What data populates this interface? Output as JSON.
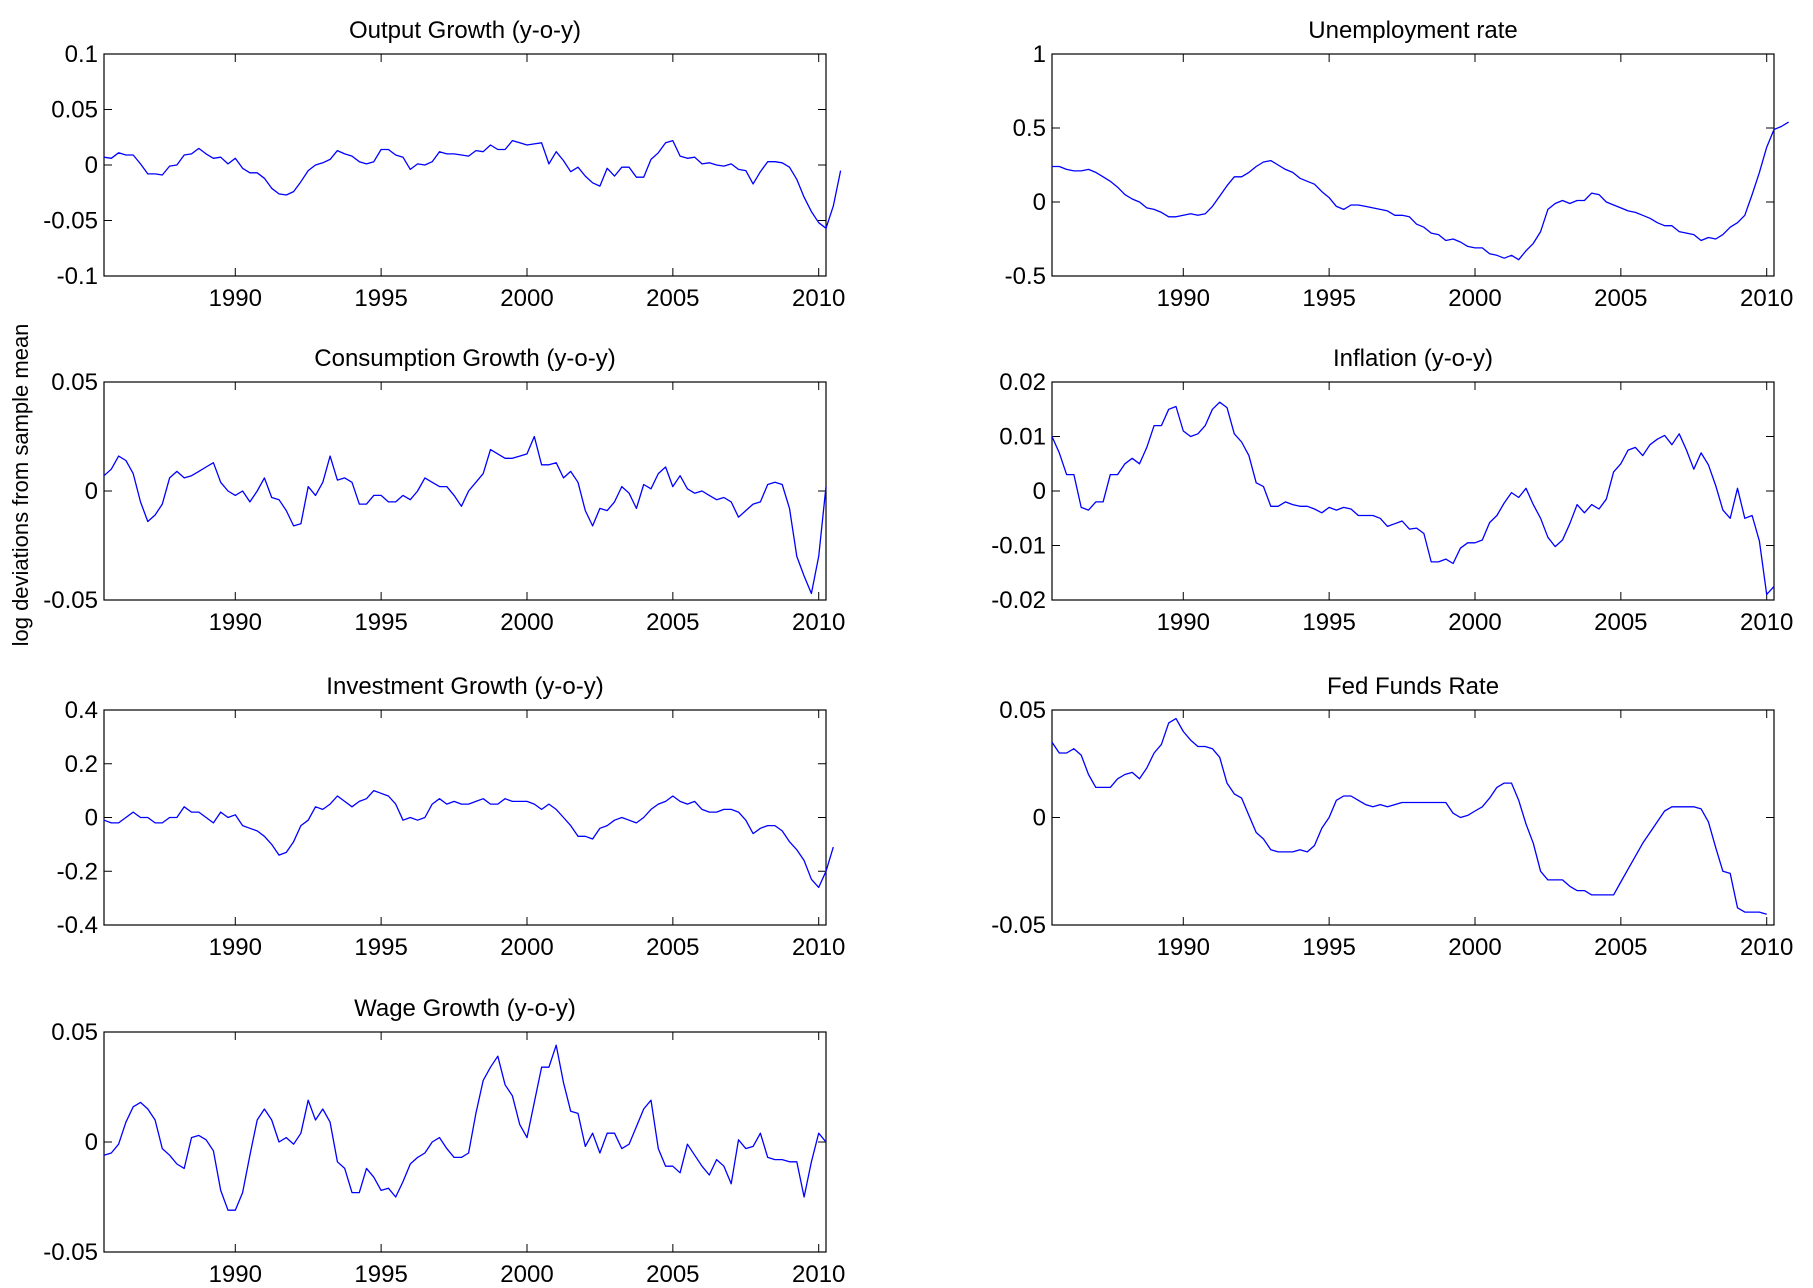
{
  "figure": {
    "ylabel": "log deviations from sample mean",
    "line_color": "#0000ff",
    "axis_color": "#000000",
    "background": "#ffffff"
  },
  "chart_data": [
    {
      "type": "line",
      "title": "Output Growth (y-o-y)",
      "xlabel": "",
      "ylabel": "",
      "xlim": [
        1985.5,
        2010.25
      ],
      "ylim": [
        -0.1,
        0.1
      ],
      "xticks": [
        "1990",
        "1995",
        "2000",
        "2005",
        "2010"
      ],
      "yticks": [
        "-0.1",
        "-0.05",
        "0",
        "0.05",
        "0.1"
      ],
      "grid": false,
      "series": [
        {
          "x_start": 1985.5,
          "x_step": 0.25,
          "values": [
            0.007,
            0.006,
            0.011,
            0.009,
            0.009,
            0.001,
            -0.008,
            -0.008,
            -0.009,
            -0.001,
            0,
            0.009,
            0.01,
            0.015,
            0.01,
            0.006,
            0.007,
            0.001,
            0.006,
            -0.003,
            -0.007,
            -0.007,
            -0.012,
            -0.021,
            -0.026,
            -0.027,
            -0.024,
            -0.015,
            -0.005,
            0,
            0.002,
            0.005,
            0.013,
            0.01,
            0.008,
            0.003,
            0.001,
            0.003,
            0.014,
            0.014,
            0.009,
            0.007,
            -0.004,
            0.001,
            0,
            0.003,
            0.012,
            0.01,
            0.01,
            0.009,
            0.008,
            0.013,
            0.012,
            0.018,
            0.014,
            0.014,
            0.022,
            0.02,
            0.018,
            0.019,
            0.02,
            0.001,
            0.012,
            0.004,
            -0.006,
            -0.002,
            -0.01,
            -0.016,
            -0.019,
            -0.003,
            -0.01,
            -0.002,
            -0.002,
            -0.011,
            -0.011,
            0.005,
            0.011,
            0.02,
            0.022,
            0.008,
            0.006,
            0.007,
            0.001,
            0.002,
            0,
            -0.001,
            0.001,
            -0.004,
            -0.005,
            -0.017,
            -0.006,
            0.003,
            0.003,
            0.002,
            -0.002,
            -0.013,
            -0.029,
            -0.042,
            -0.052,
            -0.057,
            -0.037,
            -0.005
          ]
        }
      ]
    },
    {
      "type": "line",
      "title": "Unemployment rate",
      "xlabel": "",
      "ylabel": "",
      "xlim": [
        1985.5,
        2010.25
      ],
      "ylim": [
        -0.5,
        1
      ],
      "xticks": [
        "1990",
        "1995",
        "2000",
        "2005",
        "2010"
      ],
      "yticks": [
        "-0.5",
        "0",
        "0.5",
        "1"
      ],
      "grid": false,
      "series": [
        {
          "x_start": 1985.5,
          "x_step": 0.25,
          "values": [
            0.24,
            0.24,
            0.22,
            0.21,
            0.21,
            0.22,
            0.2,
            0.17,
            0.14,
            0.1,
            0.05,
            0.02,
            0.0,
            -0.04,
            -0.05,
            -0.07,
            -0.1,
            -0.1,
            -0.09,
            -0.08,
            -0.09,
            -0.08,
            -0.03,
            0.04,
            0.11,
            0.17,
            0.17,
            0.2,
            0.24,
            0.27,
            0.28,
            0.25,
            0.22,
            0.2,
            0.16,
            0.14,
            0.12,
            0.07,
            0.03,
            -0.03,
            -0.05,
            -0.02,
            -0.02,
            -0.03,
            -0.04,
            -0.05,
            -0.06,
            -0.09,
            -0.09,
            -0.1,
            -0.15,
            -0.17,
            -0.21,
            -0.22,
            -0.26,
            -0.25,
            -0.27,
            -0.3,
            -0.31,
            -0.31,
            -0.35,
            -0.36,
            -0.38,
            -0.36,
            -0.39,
            -0.33,
            -0.28,
            -0.2,
            -0.05,
            -0.01,
            0.01,
            -0.01,
            0.01,
            0.01,
            0.06,
            0.05,
            0.0,
            -0.02,
            -0.04,
            -0.06,
            -0.07,
            -0.09,
            -0.11,
            -0.14,
            -0.16,
            -0.16,
            -0.2,
            -0.21,
            -0.22,
            -0.26,
            -0.24,
            -0.25,
            -0.22,
            -0.17,
            -0.14,
            -0.09,
            0.05,
            0.2,
            0.37,
            0.49,
            0.51,
            0.54
          ]
        }
      ]
    },
    {
      "type": "line",
      "title": "Consumption Growth (y-o-y)",
      "xlabel": "",
      "ylabel": "",
      "xlim": [
        1985.5,
        2010.25
      ],
      "ylim": [
        -0.05,
        0.05
      ],
      "xticks": [
        "1990",
        "1995",
        "2000",
        "2005",
        "2010"
      ],
      "yticks": [
        "-0.05",
        "0",
        "0.05"
      ],
      "grid": false,
      "series": [
        {
          "x_start": 1985.5,
          "x_step": 0.25,
          "values": [
            0.007,
            0.01,
            0.016,
            0.014,
            0.008,
            -0.005,
            -0.014,
            -0.011,
            -0.006,
            0.006,
            0.009,
            0.006,
            0.007,
            0.009,
            0.011,
            0.013,
            0.004,
            0.0,
            -0.002,
            0.0,
            -0.005,
            0.0,
            0.006,
            -0.003,
            -0.004,
            -0.009,
            -0.016,
            -0.015,
            0.002,
            -0.002,
            0.004,
            0.016,
            0.005,
            0.006,
            0.004,
            -0.006,
            -0.006,
            -0.002,
            -0.002,
            -0.005,
            -0.005,
            -0.002,
            -0.004,
            0.0,
            0.006,
            0.004,
            0.002,
            0.002,
            -0.002,
            -0.007,
            0.0,
            0.004,
            0.008,
            0.019,
            0.017,
            0.015,
            0.015,
            0.016,
            0.017,
            0.025,
            0.012,
            0.012,
            0.013,
            0.006,
            0.009,
            0.004,
            -0.009,
            -0.016,
            -0.008,
            -0.009,
            -0.005,
            0.002,
            -0.001,
            -0.008,
            0.003,
            0.001,
            0.008,
            0.011,
            0.002,
            0.007,
            0.001,
            -0.001,
            0.0,
            -0.002,
            -0.004,
            -0.003,
            -0.005,
            -0.012,
            -0.009,
            -0.006,
            -0.005,
            0.003,
            0.004,
            0.003,
            -0.008,
            -0.03,
            -0.039,
            -0.047,
            -0.03,
            0.002
          ]
        }
      ]
    },
    {
      "type": "line",
      "title": "Inflation (y-o-y)",
      "xlabel": "",
      "ylabel": "",
      "xlim": [
        1985.5,
        2010.25
      ],
      "ylim": [
        -0.02,
        0.02
      ],
      "xticks": [
        "1990",
        "1995",
        "2000",
        "2005",
        "2010"
      ],
      "yticks": [
        "-0.02",
        "-0.01",
        "0",
        "0.01",
        "0.02"
      ],
      "grid": false,
      "series": [
        {
          "x_start": 1985.5,
          "x_step": 0.25,
          "values": [
            0.01,
            0.007,
            0.003,
            0.003,
            -0.003,
            -0.0035,
            -0.002,
            -0.002,
            0.003,
            0.003,
            0.005,
            0.006,
            0.005,
            0.008,
            0.012,
            0.012,
            0.015,
            0.0155,
            0.011,
            0.01,
            0.0105,
            0.012,
            0.015,
            0.0163,
            0.0153,
            0.0105,
            0.009,
            0.0065,
            0.0015,
            0.0008,
            -0.0028,
            -0.0028,
            -0.002,
            -0.0025,
            -0.0028,
            -0.0028,
            -0.0033,
            -0.004,
            -0.003,
            -0.0035,
            -0.003,
            -0.0033,
            -0.0045,
            -0.0045,
            -0.0045,
            -0.005,
            -0.0065,
            -0.006,
            -0.0055,
            -0.007,
            -0.0068,
            -0.0078,
            -0.013,
            -0.013,
            -0.0125,
            -0.0133,
            -0.0105,
            -0.0095,
            -0.0095,
            -0.009,
            -0.0058,
            -0.0045,
            -0.0022,
            -0.0003,
            -0.0012,
            0.0005,
            -0.0025,
            -0.005,
            -0.0085,
            -0.0102,
            -0.009,
            -0.006,
            -0.0025,
            -0.004,
            -0.0025,
            -0.0033,
            -0.0015,
            0.0035,
            0.005,
            0.0075,
            0.008,
            0.0065,
            0.0085,
            0.0095,
            0.0102,
            0.0085,
            0.0105,
            0.0075,
            0.004,
            0.007,
            0.0048,
            0.001,
            -0.0035,
            -0.005,
            0.0005,
            -0.005,
            -0.0045,
            -0.0092,
            -0.019,
            -0.0175
          ]
        }
      ]
    },
    {
      "type": "line",
      "title": "Investment Growth (y-o-y)",
      "xlabel": "",
      "ylabel": "",
      "xlim": [
        1985.5,
        2010.25
      ],
      "ylim": [
        -0.4,
        0.4
      ],
      "xticks": [
        "1990",
        "1995",
        "2000",
        "2005",
        "2010"
      ],
      "yticks": [
        "-0.4",
        "-0.2",
        "0",
        "0.2",
        "0.4"
      ],
      "grid": false,
      "series": [
        {
          "x_start": 1985.5,
          "x_step": 0.25,
          "values": [
            -0.01,
            -0.02,
            -0.02,
            0.0,
            0.02,
            0.0,
            0.0,
            -0.02,
            -0.02,
            0.0,
            0.0,
            0.04,
            0.02,
            0.02,
            0.0,
            -0.02,
            0.02,
            0.0,
            0.01,
            -0.03,
            -0.04,
            -0.05,
            -0.07,
            -0.1,
            -0.14,
            -0.13,
            -0.09,
            -0.03,
            -0.01,
            0.04,
            0.03,
            0.05,
            0.08,
            0.06,
            0.04,
            0.06,
            0.07,
            0.1,
            0.09,
            0.08,
            0.05,
            -0.01,
            0.0,
            -0.01,
            0.0,
            0.05,
            0.07,
            0.05,
            0.06,
            0.05,
            0.05,
            0.06,
            0.07,
            0.05,
            0.05,
            0.07,
            0.06,
            0.06,
            0.06,
            0.05,
            0.03,
            0.05,
            0.03,
            0.0,
            -0.03,
            -0.07,
            -0.07,
            -0.08,
            -0.04,
            -0.03,
            -0.01,
            0.0,
            -0.01,
            -0.02,
            0.0,
            0.03,
            0.05,
            0.06,
            0.08,
            0.06,
            0.05,
            0.06,
            0.03,
            0.02,
            0.02,
            0.03,
            0.03,
            0.02,
            -0.01,
            -0.06,
            -0.04,
            -0.03,
            -0.03,
            -0.05,
            -0.09,
            -0.12,
            -0.16,
            -0.23,
            -0.26,
            -0.2,
            -0.11
          ]
        }
      ]
    },
    {
      "type": "line",
      "title": "Fed Funds Rate",
      "xlabel": "",
      "ylabel": "",
      "xlim": [
        1985.5,
        2010.25
      ],
      "ylim": [
        -0.05,
        0.05
      ],
      "xticks": [
        "1990",
        "1995",
        "2000",
        "2005",
        "2010"
      ],
      "yticks": [
        "-0.05",
        "0",
        "0.05"
      ],
      "grid": false,
      "series": [
        {
          "x_start": 1985.5,
          "x_step": 0.25,
          "values": [
            0.035,
            0.03,
            0.03,
            0.032,
            0.029,
            0.02,
            0.014,
            0.014,
            0.014,
            0.018,
            0.02,
            0.021,
            0.018,
            0.023,
            0.03,
            0.034,
            0.044,
            0.046,
            0.04,
            0.036,
            0.033,
            0.033,
            0.032,
            0.028,
            0.016,
            0.011,
            0.009,
            0.001,
            -0.007,
            -0.01,
            -0.015,
            -0.016,
            -0.016,
            -0.016,
            -0.015,
            -0.016,
            -0.013,
            -0.005,
            0.0,
            0.008,
            0.01,
            0.01,
            0.008,
            0.006,
            0.005,
            0.006,
            0.005,
            0.006,
            0.007,
            0.007,
            0.007,
            0.007,
            0.007,
            0.007,
            0.007,
            0.002,
            0.0,
            0.001,
            0.003,
            0.005,
            0.009,
            0.014,
            0.016,
            0.016,
            0.008,
            -0.003,
            -0.012,
            -0.025,
            -0.029,
            -0.029,
            -0.029,
            -0.032,
            -0.034,
            -0.034,
            -0.036,
            -0.036,
            -0.036,
            -0.036,
            -0.03,
            -0.024,
            -0.018,
            -0.012,
            -0.007,
            -0.002,
            0.003,
            0.005,
            0.005,
            0.005,
            0.005,
            0.004,
            -0.002,
            -0.014,
            -0.025,
            -0.026,
            -0.042,
            -0.044,
            -0.044,
            -0.044,
            -0.045
          ]
        }
      ]
    },
    {
      "type": "line",
      "title": "Wage Growth (y-o-y)",
      "xlabel": "",
      "ylabel": "",
      "xlim": [
        1985.5,
        2010.25
      ],
      "ylim": [
        -0.05,
        0.05
      ],
      "xticks": [
        "1990",
        "1995",
        "2000",
        "2005",
        "2010"
      ],
      "yticks": [
        "-0.05",
        "0",
        "0.05"
      ],
      "grid": false,
      "series": [
        {
          "x_start": 1985.5,
          "x_step": 0.25,
          "values": [
            -0.006,
            -0.005,
            -0.001,
            0.009,
            0.016,
            0.018,
            0.015,
            0.01,
            -0.003,
            -0.006,
            -0.01,
            -0.012,
            0.002,
            0.003,
            0.001,
            -0.004,
            -0.022,
            -0.031,
            -0.031,
            -0.023,
            -0.006,
            0.01,
            0.015,
            0.01,
            0.0,
            0.002,
            -0.001,
            0.004,
            0.019,
            0.01,
            0.015,
            0.009,
            -0.009,
            -0.012,
            -0.023,
            -0.023,
            -0.012,
            -0.016,
            -0.022,
            -0.021,
            -0.025,
            -0.018,
            -0.01,
            -0.007,
            -0.005,
            0.0,
            0.002,
            -0.003,
            -0.007,
            -0.007,
            -0.005,
            0.013,
            0.028,
            0.034,
            0.039,
            0.026,
            0.021,
            0.008,
            0.002,
            0.018,
            0.034,
            0.034,
            0.044,
            0.027,
            0.014,
            0.013,
            -0.002,
            0.004,
            -0.005,
            0.004,
            0.004,
            -0.003,
            -0.001,
            0.007,
            0.015,
            0.019,
            -0.003,
            -0.011,
            -0.011,
            -0.014,
            -0.001,
            -0.006,
            -0.011,
            -0.015,
            -0.008,
            -0.011,
            -0.019,
            0.001,
            -0.003,
            -0.002,
            0.004,
            -0.007,
            -0.008,
            -0.008,
            -0.009,
            -0.009,
            -0.025,
            -0.009,
            0.004,
            0.0
          ]
        }
      ]
    }
  ]
}
